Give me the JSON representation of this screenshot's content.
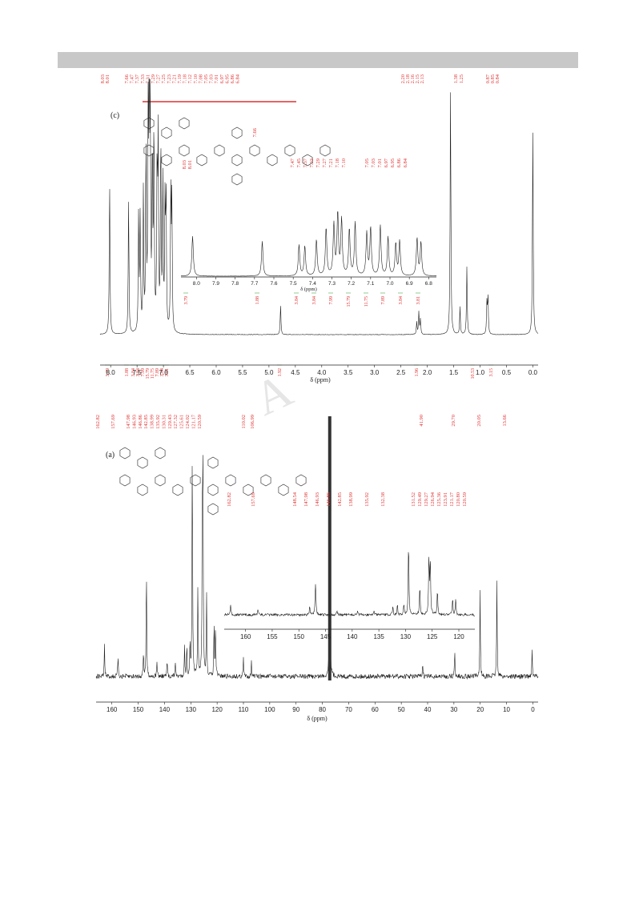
{
  "chart_data": [
    {
      "type": "line",
      "panel": "(c)",
      "xlabel": "δ (ppm)",
      "xlim": [
        8.2,
        -0.1
      ],
      "xticks": [
        "8.0",
        "7.5",
        "7.0",
        "6.5",
        "6.0",
        "5.5",
        "5.0",
        "4.5",
        "4.0",
        "3.5",
        "3.0",
        "2.5",
        "2.0",
        "1.5",
        "1.0",
        "0.5",
        "0.0"
      ],
      "peak_labels": [
        "8.03",
        "8.01",
        "7.66",
        "7.47",
        "7.37",
        "7.33",
        "7.31",
        "7.29",
        "7.27",
        "7.25",
        "7.23",
        "7.21",
        "7.19",
        "7.18",
        "7.12",
        "7.10",
        "7.08",
        "7.05",
        "7.03",
        "7.01",
        "6.97",
        "6.95",
        "6.86",
        "6.84",
        "2.20",
        "2.18",
        "2.16",
        "2.15",
        "2.13",
        "1.38",
        "1.25",
        "0.87",
        "0.85",
        "0.84"
      ],
      "integrals": [
        "3.79",
        "1.88",
        "3.84",
        "3.84",
        "7.99",
        "15.79",
        "11.75",
        "7.89",
        "3.84",
        "3.81",
        "1.92",
        "1.96",
        "10.53",
        "3.15"
      ],
      "peaks": [
        {
          "x": 8.02,
          "h": 0.62
        },
        {
          "x": 7.66,
          "h": 0.54
        },
        {
          "x": 7.47,
          "h": 0.48
        },
        {
          "x": 7.44,
          "h": 0.46
        },
        {
          "x": 7.38,
          "h": 0.56
        },
        {
          "x": 7.33,
          "h": 0.74
        },
        {
          "x": 7.29,
          "h": 0.79
        },
        {
          "x": 7.27,
          "h": 0.95
        },
        {
          "x": 7.25,
          "h": 0.86
        },
        {
          "x": 7.21,
          "h": 0.72
        },
        {
          "x": 7.18,
          "h": 0.82
        },
        {
          "x": 7.12,
          "h": 0.66
        },
        {
          "x": 7.1,
          "h": 0.74
        },
        {
          "x": 7.05,
          "h": 0.78
        },
        {
          "x": 7.01,
          "h": 0.6
        },
        {
          "x": 6.97,
          "h": 0.5
        },
        {
          "x": 6.95,
          "h": 0.54
        },
        {
          "x": 6.86,
          "h": 0.58
        },
        {
          "x": 6.84,
          "h": 0.52
        },
        {
          "x": 4.78,
          "h": 0.12
        },
        {
          "x": 2.2,
          "h": 0.05
        },
        {
          "x": 2.16,
          "h": 0.09
        },
        {
          "x": 2.13,
          "h": 0.06
        },
        {
          "x": 1.56,
          "h": 1.0
        },
        {
          "x": 1.38,
          "h": 0.11
        },
        {
          "x": 1.25,
          "h": 0.27
        },
        {
          "x": 0.87,
          "h": 0.13
        },
        {
          "x": 0.85,
          "h": 0.15
        },
        {
          "x": 0.0,
          "h": 0.83
        }
      ],
      "inset": {
        "xlabel": "δ (ppm)",
        "xlim": [
          8.08,
          6.76
        ],
        "xticks": [
          "8.0",
          "7.9",
          "7.8",
          "7.7",
          "7.6",
          "7.5",
          "7.4",
          "7.3",
          "7.2",
          "7.1",
          "7.0",
          "6.9",
          "6.8"
        ],
        "peak_labels": [
          "8.03",
          "8.01",
          "7.66",
          "7.47",
          "7.45",
          "7.37",
          "7.33",
          "7.29",
          "7.27",
          "7.21",
          "7.18",
          "7.10",
          "7.05",
          "7.03",
          "7.01",
          "6.97",
          "6.95",
          "6.86",
          "6.84"
        ],
        "integrals": [
          "3.79",
          "1.88",
          "3.84",
          "3.84",
          "7.99",
          "15.79",
          "11.75",
          "7.89",
          "3.84",
          "3.81"
        ]
      }
    },
    {
      "type": "line",
      "panel": "(a)",
      "xlabel": "δ (ppm)",
      "xlim": [
        166,
        -2
      ],
      "xticks": [
        "160",
        "150",
        "140",
        "130",
        "120",
        "110",
        "100",
        "90",
        "80",
        "70",
        "60",
        "50",
        "40",
        "30",
        "20",
        "10",
        "0"
      ],
      "peak_labels": [
        "162.82",
        "157.69",
        "147.98",
        "146.93",
        "146.86",
        "142.85",
        "138.99",
        "135.92",
        "130.31",
        "129.43",
        "127.32",
        "125.61",
        "124.02",
        "121.17",
        "120.59",
        "110.02",
        "106.99",
        "41.90",
        "29.70",
        "20.05",
        "13.66"
      ],
      "peaks": [
        {
          "x": 162.82,
          "h": 0.12
        },
        {
          "x": 157.69,
          "h": 0.08
        },
        {
          "x": 147.98,
          "h": 0.1
        },
        {
          "x": 146.93,
          "h": 0.11
        },
        {
          "x": 146.86,
          "h": 0.32
        },
        {
          "x": 142.85,
          "h": 0.06
        },
        {
          "x": 138.99,
          "h": 0.06
        },
        {
          "x": 135.92,
          "h": 0.06
        },
        {
          "x": 132.38,
          "h": 0.11
        },
        {
          "x": 131.52,
          "h": 0.12
        },
        {
          "x": 130.31,
          "h": 0.14
        },
        {
          "x": 129.43,
          "h": 0.94
        },
        {
          "x": 127.32,
          "h": 0.36
        },
        {
          "x": 125.61,
          "h": 0.75
        },
        {
          "x": 125.36,
          "h": 0.7
        },
        {
          "x": 124.02,
          "h": 0.32
        },
        {
          "x": 121.17,
          "h": 0.22
        },
        {
          "x": 120.59,
          "h": 0.2
        },
        {
          "x": 110.02,
          "h": 0.07
        },
        {
          "x": 106.99,
          "h": 0.06
        },
        {
          "x": 77.2,
          "h": 1.0
        },
        {
          "x": 41.9,
          "h": 0.05
        },
        {
          "x": 29.7,
          "h": 0.1
        },
        {
          "x": 20.05,
          "h": 0.33
        },
        {
          "x": 13.66,
          "h": 0.37
        },
        {
          "x": 0.3,
          "h": 0.1
        }
      ],
      "inset": {
        "xlim": [
          164,
          117
        ],
        "xticks": [
          "160",
          "155",
          "150",
          "145",
          "140",
          "135",
          "130",
          "125",
          "120"
        ],
        "peak_labels": [
          "162.82",
          "157.69",
          "148.54",
          "147.98",
          "146.93",
          "146.86",
          "142.85",
          "138.99",
          "135.92",
          "132.38",
          "131.52",
          "129.49",
          "129.27",
          "126.94",
          "125.36",
          "123.91",
          "121.17",
          "120.80",
          "120.59"
        ]
      }
    }
  ]
}
